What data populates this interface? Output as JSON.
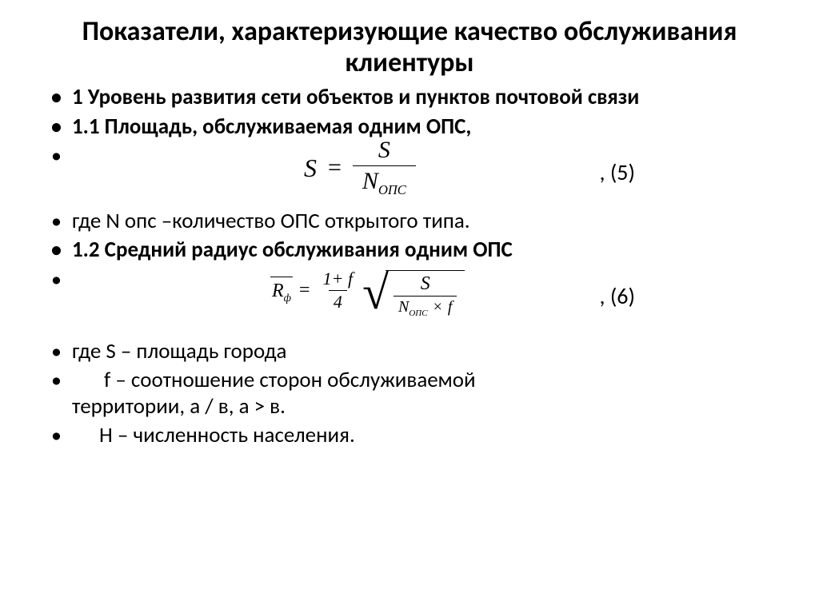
{
  "title": "Показатели, характеризующие качество обслуживания клиентуры",
  "items": {
    "l1": "1 Уровень развития сети объектов и пунктов почтовой связи",
    "l2": "1.1 Площадь, обслуживаемая одним ОПС,",
    "eq1_label": ",   (5)",
    "l3": "где N опс –количество ОПС открытого типа.",
    "l4": "1.2 Средний радиус обслуживания одним ОПС",
    "eq2_label": ",   (6)",
    "l5": "где S – площадь города",
    "l6_prefix": "f – соотношение сторон обслуживаемой",
    "l6_suffix": "территории, а / в, а > в.",
    "l7": "Н – численность населения."
  },
  "formula1": {
    "lhs": "S",
    "eq": "=",
    "num": "S",
    "den_base": "N",
    "den_sub": "ОПС"
  },
  "formula2": {
    "lhs_base": "R",
    "lhs_sub": "ф",
    "eq": "=",
    "frac_a_num": "1+ f",
    "frac_a_den": "4",
    "sqrt_num": "S",
    "sqrt_den_base": "N",
    "sqrt_den_sub": "ОПС",
    "times": "×",
    "sqrt_den_tail": "f"
  },
  "style": {
    "bg": "#ffffff",
    "text": "#000000",
    "title_fontsize": 34,
    "body_fontsize": 27,
    "formula_font": "Times New Roman"
  }
}
